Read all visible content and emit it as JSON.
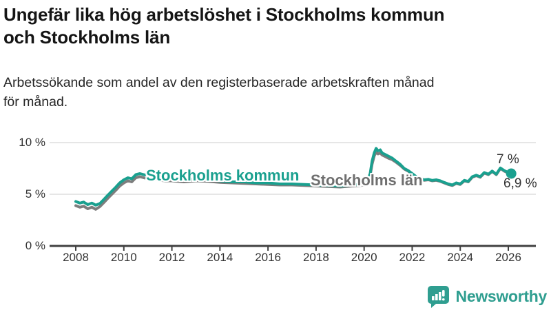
{
  "header": {
    "title_line1": "Ungefär lika hög arbetslöshet i Stockholms kommun",
    "title_line2": "och Stockholms län",
    "subtitle_line1": "Arbetssökande som andel av den registerbaserade arbetskraften månad",
    "subtitle_line2": "för månad."
  },
  "chart_data": {
    "type": "line",
    "title": "Ungefär lika hög arbetslöshet i Stockholms kommun och Stockholms län",
    "subtitle": "Arbetssökande som andel av den registerbaserade arbetskraften månad för månad.",
    "xlabel": "",
    "ylabel": "",
    "x_range": [
      2008,
      2026.2
    ],
    "ylim": [
      0,
      10
    ],
    "grid": "horizontal",
    "legend_position": "inline-labels",
    "y_ticks": [
      {
        "value": 0,
        "label": "0 %"
      },
      {
        "value": 5,
        "label": "5 %"
      },
      {
        "value": 10,
        "label": "10 %"
      }
    ],
    "x_ticks": [
      2008,
      2010,
      2012,
      2014,
      2016,
      2018,
      2020,
      2022,
      2024,
      2026
    ],
    "series": [
      {
        "name": "Stockholms kommun",
        "label": "Stockholms kommun",
        "color": "#1aa08f",
        "end_label": "7 %",
        "end_value": 7.0,
        "marker_on_last_point": true,
        "values": [
          [
            2008.0,
            4.3
          ],
          [
            2008.17,
            4.15
          ],
          [
            2008.33,
            4.25
          ],
          [
            2008.5,
            4.0
          ],
          [
            2008.67,
            4.15
          ],
          [
            2008.83,
            3.95
          ],
          [
            2009.0,
            4.1
          ],
          [
            2009.17,
            4.5
          ],
          [
            2009.33,
            4.9
          ],
          [
            2009.5,
            5.3
          ],
          [
            2009.67,
            5.7
          ],
          [
            2009.83,
            6.1
          ],
          [
            2010.0,
            6.4
          ],
          [
            2010.17,
            6.6
          ],
          [
            2010.33,
            6.5
          ],
          [
            2010.5,
            6.9
          ],
          [
            2010.67,
            7.0
          ],
          [
            2010.83,
            6.9
          ],
          [
            2011.0,
            6.8
          ],
          [
            2011.25,
            6.7
          ],
          [
            2011.5,
            6.6
          ],
          [
            2011.75,
            6.5
          ],
          [
            2012.0,
            6.5
          ],
          [
            2012.5,
            6.4
          ],
          [
            2013.0,
            6.5
          ],
          [
            2013.5,
            6.4
          ],
          [
            2014.0,
            6.3
          ],
          [
            2014.5,
            6.2
          ],
          [
            2015.0,
            6.2
          ],
          [
            2015.5,
            6.1
          ],
          [
            2016.0,
            6.1
          ],
          [
            2016.5,
            6.0
          ],
          [
            2017.0,
            6.0
          ],
          [
            2017.5,
            5.95
          ],
          [
            2018.0,
            5.9
          ],
          [
            2018.5,
            5.85
          ],
          [
            2019.0,
            5.8
          ],
          [
            2019.5,
            5.9
          ],
          [
            2019.83,
            5.95
          ],
          [
            2020.08,
            6.0
          ],
          [
            2020.25,
            7.0
          ],
          [
            2020.33,
            8.2
          ],
          [
            2020.42,
            9.0
          ],
          [
            2020.5,
            9.45
          ],
          [
            2020.58,
            9.2
          ],
          [
            2020.67,
            9.3
          ],
          [
            2020.75,
            9.0
          ],
          [
            2020.92,
            8.8
          ],
          [
            2021.0,
            8.7
          ],
          [
            2021.17,
            8.5
          ],
          [
            2021.33,
            8.2
          ],
          [
            2021.5,
            7.9
          ],
          [
            2021.67,
            7.5
          ],
          [
            2021.83,
            7.3
          ],
          [
            2022.0,
            7.0
          ],
          [
            2022.17,
            6.7
          ],
          [
            2022.33,
            6.5
          ],
          [
            2022.5,
            6.4
          ],
          [
            2022.67,
            6.45
          ],
          [
            2022.83,
            6.35
          ],
          [
            2023.0,
            6.4
          ],
          [
            2023.17,
            6.3
          ],
          [
            2023.33,
            6.15
          ],
          [
            2023.5,
            6.0
          ],
          [
            2023.67,
            5.9
          ],
          [
            2023.83,
            6.1
          ],
          [
            2024.0,
            6.0
          ],
          [
            2024.17,
            6.35
          ],
          [
            2024.33,
            6.25
          ],
          [
            2024.5,
            6.7
          ],
          [
            2024.67,
            6.85
          ],
          [
            2024.83,
            6.7
          ],
          [
            2025.0,
            7.1
          ],
          [
            2025.17,
            6.95
          ],
          [
            2025.33,
            7.25
          ],
          [
            2025.5,
            6.95
          ],
          [
            2025.67,
            7.55
          ],
          [
            2025.83,
            7.3
          ],
          [
            2026.0,
            7.1
          ],
          [
            2026.12,
            7.0
          ]
        ]
      },
      {
        "name": "Stockholms län",
        "label": "Stockholms län",
        "color": "#7d7d7d",
        "label_color": "#6f6f6f",
        "end_label": "6,9 %",
        "end_value": 6.9,
        "marker_on_last_point": false,
        "values": [
          [
            2008.0,
            3.9
          ],
          [
            2008.17,
            3.75
          ],
          [
            2008.33,
            3.85
          ],
          [
            2008.5,
            3.6
          ],
          [
            2008.67,
            3.75
          ],
          [
            2008.83,
            3.55
          ],
          [
            2009.0,
            3.8
          ],
          [
            2009.17,
            4.2
          ],
          [
            2009.33,
            4.6
          ],
          [
            2009.5,
            5.0
          ],
          [
            2009.67,
            5.4
          ],
          [
            2009.83,
            5.8
          ],
          [
            2010.0,
            6.1
          ],
          [
            2010.17,
            6.3
          ],
          [
            2010.33,
            6.2
          ],
          [
            2010.5,
            6.6
          ],
          [
            2010.67,
            6.7
          ],
          [
            2010.83,
            6.6
          ],
          [
            2011.0,
            6.5
          ],
          [
            2011.25,
            6.45
          ],
          [
            2011.5,
            6.35
          ],
          [
            2011.75,
            6.3
          ],
          [
            2012.0,
            6.3
          ],
          [
            2012.5,
            6.2
          ],
          [
            2013.0,
            6.3
          ],
          [
            2013.5,
            6.25
          ],
          [
            2014.0,
            6.15
          ],
          [
            2014.5,
            6.1
          ],
          [
            2015.0,
            6.05
          ],
          [
            2015.5,
            6.0
          ],
          [
            2016.0,
            5.95
          ],
          [
            2016.5,
            5.9
          ],
          [
            2017.0,
            5.9
          ],
          [
            2017.5,
            5.85
          ],
          [
            2018.0,
            5.8
          ],
          [
            2018.5,
            5.75
          ],
          [
            2019.0,
            5.7
          ],
          [
            2019.5,
            5.8
          ],
          [
            2019.83,
            5.85
          ],
          [
            2020.08,
            5.9
          ],
          [
            2020.25,
            6.8
          ],
          [
            2020.33,
            7.9
          ],
          [
            2020.42,
            8.7
          ],
          [
            2020.5,
            9.1
          ],
          [
            2020.58,
            8.9
          ],
          [
            2020.67,
            9.0
          ],
          [
            2020.75,
            8.8
          ],
          [
            2020.92,
            8.6
          ],
          [
            2021.0,
            8.5
          ],
          [
            2021.17,
            8.35
          ],
          [
            2021.33,
            8.1
          ],
          [
            2021.5,
            7.8
          ],
          [
            2021.67,
            7.45
          ],
          [
            2021.83,
            7.25
          ],
          [
            2022.0,
            6.95
          ],
          [
            2022.17,
            6.65
          ],
          [
            2022.33,
            6.5
          ],
          [
            2022.5,
            6.35
          ],
          [
            2022.67,
            6.4
          ],
          [
            2022.83,
            6.3
          ],
          [
            2023.0,
            6.35
          ],
          [
            2023.17,
            6.25
          ],
          [
            2023.33,
            6.1
          ],
          [
            2023.5,
            5.95
          ],
          [
            2023.67,
            5.85
          ],
          [
            2023.83,
            6.05
          ],
          [
            2024.0,
            5.95
          ],
          [
            2024.17,
            6.3
          ],
          [
            2024.33,
            6.2
          ],
          [
            2024.5,
            6.65
          ],
          [
            2024.67,
            6.8
          ],
          [
            2024.83,
            6.65
          ],
          [
            2025.0,
            7.05
          ],
          [
            2025.17,
            6.9
          ],
          [
            2025.33,
            7.2
          ],
          [
            2025.5,
            6.9
          ],
          [
            2025.67,
            7.5
          ],
          [
            2025.83,
            7.25
          ],
          [
            2026.0,
            7.05
          ],
          [
            2026.12,
            6.9
          ]
        ]
      }
    ],
    "colors": {
      "accent_teal": "#1aa08f",
      "line_gray": "#7d7d7d",
      "grid": "#dddddd",
      "axis": "#404040",
      "tick_text": "#333333"
    }
  },
  "footer": {
    "brand_name": "Newsworthy",
    "brand_color": "#2f9e90",
    "logo_icon": "bar-chart-speech-bubble"
  }
}
